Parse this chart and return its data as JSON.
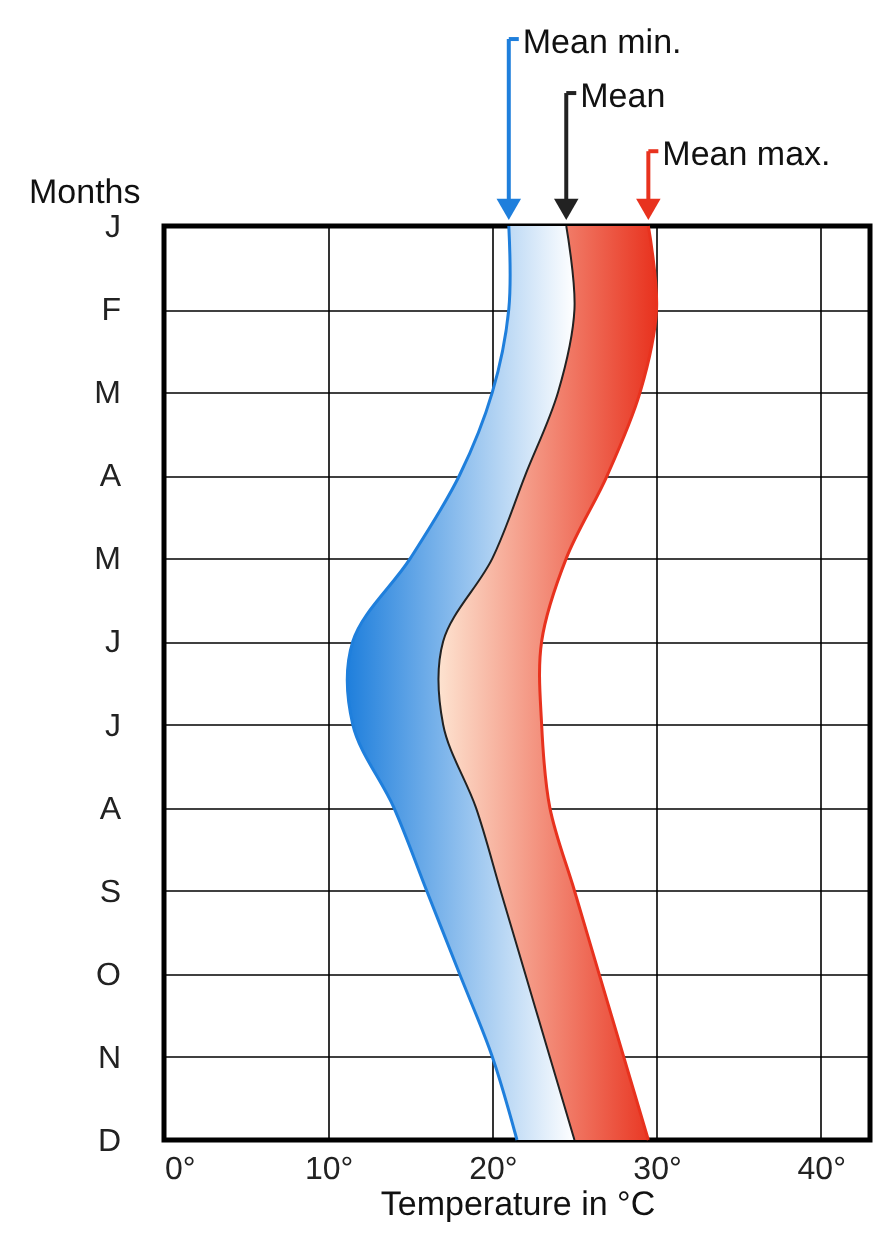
{
  "chart_data": {
    "type": "line",
    "orientation": "horizontal",
    "ylabel": "Months",
    "xlabel": "Temperature in °C",
    "categories": [
      "J",
      "F",
      "M",
      "A",
      "M",
      "J",
      "J",
      "A",
      "S",
      "O",
      "N",
      "D"
    ],
    "series": [
      {
        "name": "Mean min.",
        "color": "#1f7fdc",
        "values": [
          21,
          21,
          20,
          18,
          15,
          11.5,
          11.5,
          14,
          16,
          18,
          20,
          21.5
        ]
      },
      {
        "name": "Mean",
        "color": "#222222",
        "values": [
          24.5,
          25,
          24,
          22,
          20,
          17,
          17,
          19,
          20.5,
          22,
          23.5,
          25
        ]
      },
      {
        "name": "Mean max.",
        "color": "#e8321e",
        "values": [
          29.5,
          30,
          29,
          27,
          24.5,
          23,
          23,
          23.5,
          25,
          26.5,
          28,
          29.5
        ]
      }
    ],
    "xlim": [
      0,
      43
    ],
    "xticks": [
      {
        "value": 0,
        "label": "0°"
      },
      {
        "value": 10,
        "label": "10°"
      },
      {
        "value": 20,
        "label": "20°"
      },
      {
        "value": 30,
        "label": "30°"
      },
      {
        "value": 40,
        "label": "40°"
      }
    ],
    "grid": true,
    "legend": "top right"
  }
}
